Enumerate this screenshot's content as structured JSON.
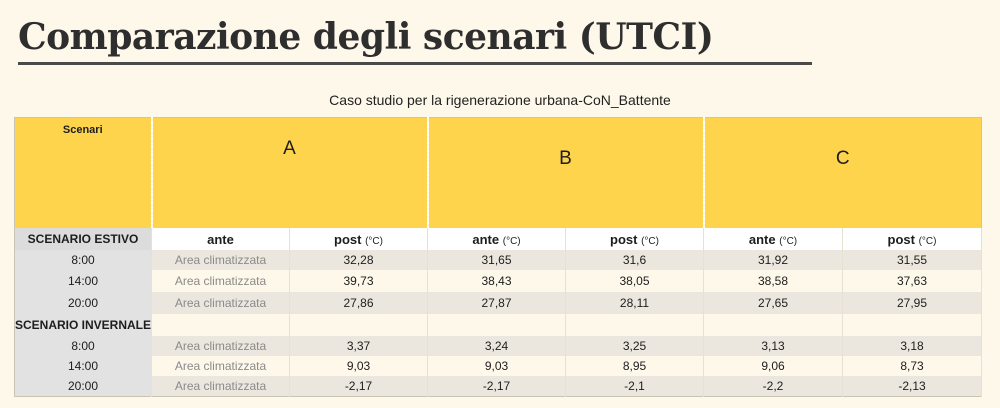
{
  "title": "Comparazione degli scenari (UTCI)",
  "subtitle": "Caso studio per la rigenerazione urbana-CoN_Battente",
  "table": {
    "corner_label": "Scenari",
    "scenarios": [
      "A",
      "B",
      "C"
    ],
    "ante_label": "ante",
    "post_label": "post",
    "unit": "(°C)",
    "summer_label": "SCENARIO ESTIVO",
    "winter_label": "SCENARIO INVERNALE",
    "climate_text": "Area climatizzata",
    "summer_rows": [
      {
        "time": "8:00",
        "values": [
          "32,28",
          "31,65",
          "31,6",
          "31,92",
          "31,55"
        ]
      },
      {
        "time": "14:00",
        "values": [
          "39,73",
          "38,43",
          "38,05",
          "38,58",
          "37,63"
        ]
      },
      {
        "time": "20:00",
        "values": [
          "27,86",
          "27,87",
          "28,11",
          "27,65",
          "27,95"
        ]
      }
    ],
    "winter_rows": [
      {
        "time": "8:00",
        "values": [
          "3,37",
          "3,24",
          "3,25",
          "3,13",
          "3,18"
        ]
      },
      {
        "time": "14:00",
        "values": [
          "9,03",
          "9,03",
          "8,95",
          "9,06",
          "8,73"
        ]
      },
      {
        "time": "20:00",
        "values": [
          "-2,17",
          "-2,17",
          "-2,1",
          "-2,2",
          "-2,13"
        ]
      }
    ]
  }
}
